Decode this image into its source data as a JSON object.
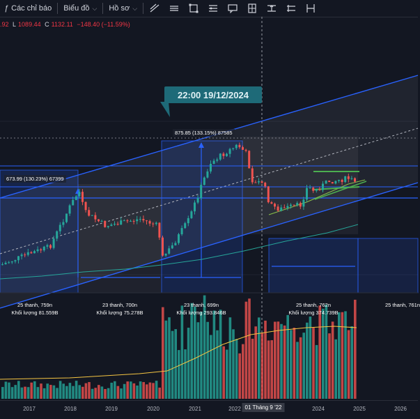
{
  "toolbar": {
    "indicators_label": "Các chỉ báo",
    "chart_type_label": "Biểu đồ",
    "profile_label": "Hồ sơ"
  },
  "ohlc": {
    "open_tail": ".92",
    "low_label": "L",
    "low_value": "1089.44",
    "close_label": "C",
    "close_value": "1132.11",
    "change": "−148.40 (−11.59%)"
  },
  "tooltip": {
    "text": "22:00 19/12/2024"
  },
  "range_labels": {
    "left": "673.99 (130.23%) 67399",
    "middle": "875.85 (133.15%) 87585"
  },
  "stats": [
    {
      "bars": "25 thanh, 759n",
      "volume": "Khối lượng 81.559B"
    },
    {
      "bars": "23 thanh, 700n",
      "volume": "Khối lượng 75.278B"
    },
    {
      "bars": "23 thanh, 699n",
      "volume": "Khối lượng 293.846B"
    },
    {
      "bars": "25 thanh, 762n",
      "volume": "Khối lượng 374.739B"
    },
    {
      "bars": "25 thanh, 761n",
      "volume": ""
    }
  ],
  "xaxis": {
    "ticks": [
      "2017",
      "2018",
      "2019",
      "2020",
      "2021",
      "2022",
      "2024",
      "2025",
      "2026"
    ],
    "cursor_label": "01 Tháng 9 '22"
  },
  "colors": {
    "up": "#26a69a",
    "down": "#ef5350",
    "channel": "#2962ff",
    "bg": "#131722"
  }
}
